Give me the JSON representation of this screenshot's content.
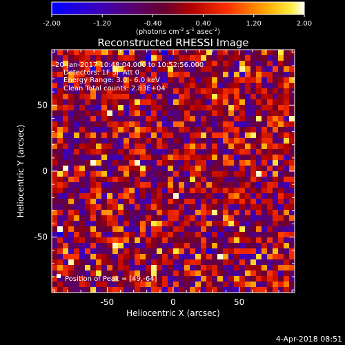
{
  "colorbar": {
    "ticks": [
      "-2.00",
      "-1.20",
      "-0.40",
      "0.40",
      "1.20",
      "2.00"
    ],
    "units_main": "(photons cm",
    "units_exp1": "-2",
    "units_mid": " s",
    "units_exp2": "-1",
    "units_end": " asec",
    "units_exp3": "-2",
    "units_close": ")",
    "min": -2.0,
    "max": 2.0
  },
  "chart_data": {
    "type": "heatmap",
    "title": "Reconstructed RHESSI Image",
    "xlabel": "Heliocentric X (arcsec)",
    "ylabel": "Heliocentric Y (arcsec)",
    "xlim": [
      -92,
      92
    ],
    "ylim": [
      -92,
      92
    ],
    "xticks": [
      -50,
      0,
      50
    ],
    "yticks": [
      -50,
      0,
      50
    ],
    "annotations": [
      "20-Jan-2017 10:48:04.000 to 10:52:56.000",
      "Detectors: 1F 3F  Att 0",
      "Energy Range: 3.0 - 6.0 keV",
      "Clean      Total counts: 2.83E+04"
    ],
    "peak_label": "Position of Peak = [49,-64]",
    "peak_position": [
      49,
      -64
    ],
    "grid": false,
    "legend": "none"
  },
  "footer": {
    "date": "4-Apr-2018 08:51"
  }
}
